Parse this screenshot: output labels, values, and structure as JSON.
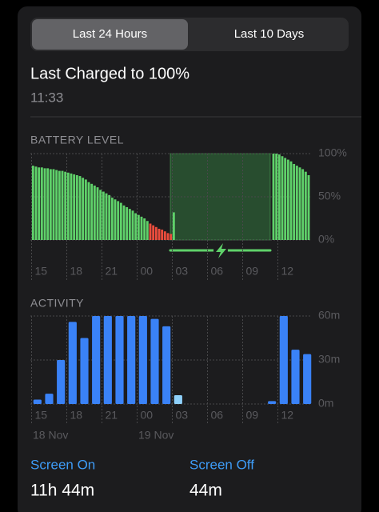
{
  "segmented_control": {
    "options": [
      "Last 24 Hours",
      "Last 10 Days"
    ],
    "selected": 0
  },
  "last_charged": {
    "title": "Last Charged to 100%",
    "time": "11:33"
  },
  "summary": [
    {
      "label": "Screen On",
      "value": "11h 44m"
    },
    {
      "label": "Screen Off",
      "value": "44m"
    }
  ],
  "chart_data": [
    {
      "type": "bar",
      "title": "BATTERY LEVEL",
      "categories": [
        "15",
        null,
        null,
        null,
        null,
        null,
        null,
        null,
        null,
        null,
        null,
        null,
        "18",
        null,
        null,
        null,
        null,
        null,
        null,
        null,
        null,
        null,
        null,
        null,
        "21",
        null,
        null,
        null,
        null,
        null,
        null,
        null,
        null,
        null,
        null,
        null,
        "00",
        null,
        null,
        null,
        null,
        null,
        null,
        null,
        null,
        null,
        null,
        null,
        "03",
        null,
        null,
        null,
        null,
        null,
        null,
        null,
        null,
        null,
        null,
        null,
        "06",
        null,
        null,
        null,
        null,
        null,
        null,
        null,
        null,
        null,
        null,
        null,
        "09",
        null,
        null,
        null,
        null,
        null,
        null,
        null,
        null,
        null,
        null,
        null,
        "12",
        null,
        null,
        null,
        null,
        null,
        null,
        null,
        null,
        null,
        null,
        null
      ],
      "series": [
        {
          "color": "#5fd16a",
          "values": [
            86,
            85,
            84,
            84,
            83,
            83,
            82,
            82,
            81,
            80,
            80,
            79,
            78,
            77,
            76,
            75,
            74,
            72,
            70,
            67,
            65,
            63,
            61,
            58,
            56,
            54,
            52,
            49,
            47,
            45,
            43,
            40,
            38,
            36,
            34,
            31,
            29,
            27,
            25,
            22,
            null,
            null,
            null,
            null,
            null,
            null,
            null,
            null,
            32,
            null,
            null,
            null,
            null,
            null,
            null,
            null,
            null,
            null,
            null,
            null,
            null,
            null,
            null,
            null,
            null,
            null,
            null,
            null,
            null,
            null,
            null,
            null,
            null,
            null,
            null,
            null,
            null,
            null,
            null,
            null,
            null,
            null,
            100,
            100,
            99,
            97,
            95,
            93,
            91,
            88,
            86,
            84,
            82,
            79,
            75,
            null
          ]
        },
        {
          "color": "#eb4d3d",
          "values": [
            null,
            null,
            null,
            null,
            null,
            null,
            null,
            null,
            null,
            null,
            null,
            null,
            null,
            null,
            null,
            null,
            null,
            null,
            null,
            null,
            null,
            null,
            null,
            null,
            null,
            null,
            null,
            null,
            null,
            null,
            null,
            null,
            null,
            null,
            null,
            null,
            null,
            null,
            null,
            null,
            19,
            17,
            15,
            13,
            12,
            10,
            8,
            7,
            null,
            null,
            null,
            null,
            null,
            null,
            null,
            null,
            null,
            null,
            null,
            null,
            null,
            null,
            null,
            null,
            null,
            null,
            null,
            null,
            null,
            null,
            null,
            null,
            null,
            null,
            null,
            null,
            null,
            null,
            null,
            null,
            null,
            null,
            null,
            null,
            null,
            null,
            null,
            null,
            null,
            null,
            null,
            null,
            null,
            null,
            null,
            null
          ]
        }
      ],
      "ylim": [
        0,
        100
      ],
      "yticks": [
        {
          "value": 0,
          "label": "0%"
        },
        {
          "value": 50,
          "label": "50%"
        },
        {
          "value": 100,
          "label": "100%"
        }
      ],
      "grid": true
    },
    {
      "type": "bar",
      "title": "ACTIVITY",
      "categories": [
        "15",
        null,
        null,
        "18",
        null,
        null,
        "21",
        null,
        null,
        "00",
        null,
        null,
        "03",
        null,
        null,
        "06",
        null,
        null,
        "09",
        null,
        null,
        "12",
        null,
        null
      ],
      "date_labels": [
        "18 Nov",
        null,
        null,
        null,
        null,
        null,
        null,
        null,
        null,
        "19 Nov",
        null,
        null,
        null,
        null,
        null,
        null,
        null,
        null,
        null,
        null,
        null,
        null,
        null,
        null
      ],
      "series": [
        {
          "color": "#3a82f7",
          "values": [
            3,
            7,
            30,
            56,
            45,
            60,
            60,
            60,
            60,
            60,
            58,
            53,
            null,
            null,
            null,
            null,
            null,
            null,
            null,
            null,
            2,
            60,
            37,
            34
          ]
        },
        {
          "color": "#8fd1fb",
          "values": [
            null,
            null,
            null,
            null,
            null,
            null,
            null,
            null,
            null,
            null,
            null,
            null,
            6,
            null,
            null,
            null,
            null,
            null,
            null,
            null,
            null,
            null,
            null,
            null
          ]
        }
      ],
      "ylim": [
        0,
        60
      ],
      "yticks": [
        {
          "value": 0,
          "label": "0m"
        },
        {
          "value": 30,
          "label": "30m"
        },
        {
          "value": 60,
          "label": "60m"
        }
      ],
      "grid": true
    }
  ]
}
